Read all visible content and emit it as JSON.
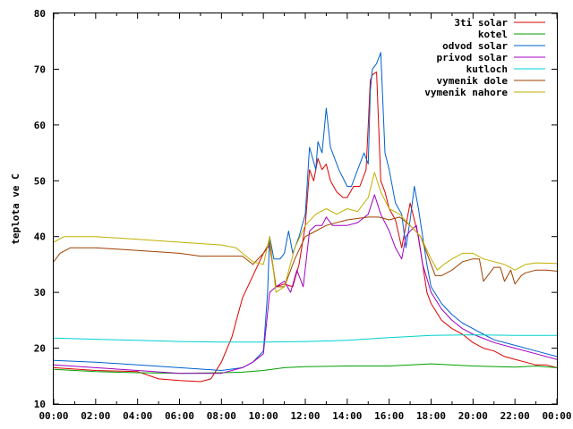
{
  "chart_data": {
    "type": "line",
    "ylabel": "teplota ve C",
    "xlabel": "",
    "title": "",
    "ylim": [
      10,
      80
    ],
    "xlim": [
      0,
      24
    ],
    "y_ticks": [
      "10",
      "20",
      "30",
      "40",
      "50",
      "60",
      "70",
      "80"
    ],
    "x_ticks": [
      "00:00",
      "02:00",
      "04:00",
      "06:00",
      "08:00",
      "10:00",
      "12:00",
      "14:00",
      "16:00",
      "18:00",
      "20:00",
      "22:00",
      "00:00"
    ],
    "grid": false,
    "legend_position": "top-right",
    "series": [
      {
        "name": "3ti solar",
        "color": "#dd0000",
        "x": [
          0,
          2,
          4,
          5,
          6,
          7,
          7.5,
          8,
          8.5,
          9,
          9.5,
          10,
          10.3,
          10.6,
          11,
          11.4,
          11.7,
          12,
          12.2,
          12.4,
          12.6,
          12.8,
          13,
          13.2,
          13.5,
          13.8,
          14,
          14.3,
          14.6,
          14.9,
          15,
          15.1,
          15.2,
          15.4,
          15.6,
          15.8,
          16,
          16.3,
          16.6,
          16.8,
          17,
          17.2,
          17.4,
          17.6,
          17.8,
          18,
          18.5,
          19,
          19.5,
          20,
          20.5,
          21,
          21.5,
          22,
          22.5,
          23,
          23.5,
          24
        ],
        "y": [
          16.5,
          16,
          15.8,
          14.5,
          14.2,
          14,
          14.5,
          17.5,
          22,
          29,
          33,
          37,
          38.5,
          31,
          31.5,
          31,
          35,
          42,
          52,
          50,
          54,
          52,
          53,
          50,
          48,
          47,
          47,
          49,
          49,
          52,
          60,
          68,
          69,
          69.5,
          50,
          48,
          45,
          43,
          38,
          42,
          46,
          43,
          40,
          35,
          30,
          28,
          25,
          23.5,
          22.5,
          21,
          20,
          19.5,
          18.5,
          18,
          17.5,
          17,
          17,
          16.5
        ]
      },
      {
        "name": "kotel",
        "color": "#00a000",
        "x": [
          0,
          2,
          4,
          6,
          8,
          9,
          10,
          11,
          12,
          14,
          16,
          18,
          20,
          22,
          23,
          24
        ],
        "y": [
          16.2,
          15.8,
          15.6,
          15.5,
          15.6,
          15.7,
          16,
          16.5,
          16.7,
          16.8,
          16.8,
          17.2,
          16.8,
          16.6,
          16.8,
          16.5
        ]
      },
      {
        "name": "odvod solar",
        "color": "#0060d0",
        "x": [
          0,
          2,
          4,
          6,
          8,
          9,
          9.5,
          10,
          10.2,
          10.3,
          10.5,
          10.8,
          11,
          11.2,
          11.4,
          11.7,
          12,
          12.2,
          12.5,
          12.6,
          12.8,
          13,
          13.2,
          13.4,
          13.6,
          14,
          14.2,
          14.5,
          14.8,
          15,
          15.1,
          15.2,
          15.4,
          15.6,
          15.8,
          16,
          16.3,
          16.6,
          16.8,
          17,
          17.2,
          17.4,
          17.6,
          17.8,
          18,
          18.5,
          19,
          19.5,
          20,
          20.5,
          21,
          22,
          23,
          24
        ],
        "y": [
          17.8,
          17.5,
          17,
          16.5,
          16,
          16.5,
          17.5,
          19.5,
          30,
          40,
          36,
          36,
          37,
          41,
          37,
          40,
          44,
          56,
          52,
          57,
          55,
          63,
          56,
          54,
          52,
          49,
          49,
          52,
          55,
          53,
          66,
          70,
          71,
          73,
          55,
          52,
          46,
          44,
          38,
          43,
          49,
          45,
          40,
          35,
          31,
          28,
          26,
          24.5,
          23.5,
          22.5,
          21.5,
          20.5,
          19.5,
          18.5
        ]
      },
      {
        "name": "privod solar",
        "color": "#a000c0",
        "x": [
          0,
          2,
          4,
          6,
          8,
          9,
          9.5,
          10,
          10.3,
          10.6,
          11,
          11.3,
          11.6,
          11.9,
          12.2,
          12.5,
          12.8,
          13,
          13.3,
          13.6,
          14,
          14.5,
          15,
          15.3,
          15.6,
          16,
          16.3,
          16.6,
          16.8,
          17,
          17.3,
          17.6,
          18,
          18.5,
          19,
          19.5,
          20,
          21,
          22,
          23,
          24
        ],
        "y": [
          17,
          16.5,
          16,
          15.5,
          15.5,
          16.5,
          17.5,
          19,
          30,
          31,
          32,
          30,
          34,
          31,
          41,
          42,
          42,
          43.5,
          42,
          42,
          42,
          42.5,
          44,
          47.5,
          44,
          41,
          38,
          36,
          40,
          41,
          42,
          35,
          30,
          27,
          25,
          23.5,
          22.5,
          21,
          20,
          19,
          18
        ]
      },
      {
        "name": "kutloch",
        "color": "#00d0d0",
        "x": [
          0,
          2,
          4,
          6,
          8,
          10,
          12,
          14,
          16,
          18,
          20,
          22,
          24
        ],
        "y": [
          21.8,
          21.6,
          21.4,
          21.2,
          21.1,
          21.1,
          21.2,
          21.4,
          21.9,
          22.3,
          22.4,
          22.3,
          22.3
        ]
      },
      {
        "name": "vymenik dole",
        "color": "#a04000",
        "x": [
          0,
          0.3,
          0.8,
          2,
          4,
          6,
          7,
          8,
          9,
          9.5,
          10,
          10.3,
          10.6,
          11,
          11.5,
          12,
          12.5,
          13,
          14,
          15,
          15.5,
          16,
          16.5,
          17,
          17.5,
          18,
          18.2,
          18.5,
          19,
          19.5,
          20,
          20.3,
          20.5,
          21,
          21.3,
          21.5,
          21.8,
          22,
          22.3,
          22.5,
          23,
          23.5,
          24
        ],
        "y": [
          35.5,
          37,
          38,
          38,
          37.5,
          37,
          36.5,
          36.5,
          36.5,
          35,
          37,
          39,
          31,
          31,
          36,
          40,
          41,
          42,
          43,
          43.5,
          43.5,
          43,
          43.5,
          42,
          40,
          35,
          33,
          33,
          34,
          35.5,
          36,
          36,
          32,
          34.5,
          34.5,
          32,
          34,
          31.5,
          33,
          33.5,
          34,
          34,
          33.8
        ]
      },
      {
        "name": "vymenik nahore",
        "color": "#c0b000",
        "x": [
          0,
          0.5,
          1,
          2,
          4,
          6,
          8,
          8.7,
          9,
          9.5,
          10,
          10.3,
          10.6,
          11,
          11.5,
          12,
          12.5,
          13,
          13.5,
          14,
          14.5,
          15,
          15.3,
          15.6,
          16,
          16.5,
          17,
          17.5,
          18,
          18.3,
          18.6,
          19,
          19.5,
          20,
          20.5,
          21,
          21.5,
          22,
          22.5,
          23,
          24
        ],
        "y": [
          39,
          40,
          40,
          40,
          39.5,
          39,
          38.5,
          38,
          37,
          35.5,
          35,
          40,
          30,
          31,
          38,
          42,
          44,
          45,
          44,
          45,
          44.5,
          47,
          51.5,
          48,
          45,
          44,
          42,
          40,
          36,
          34,
          35,
          36,
          37,
          37,
          36,
          35.5,
          35,
          34,
          35,
          35.3,
          35.2
        ]
      }
    ]
  }
}
